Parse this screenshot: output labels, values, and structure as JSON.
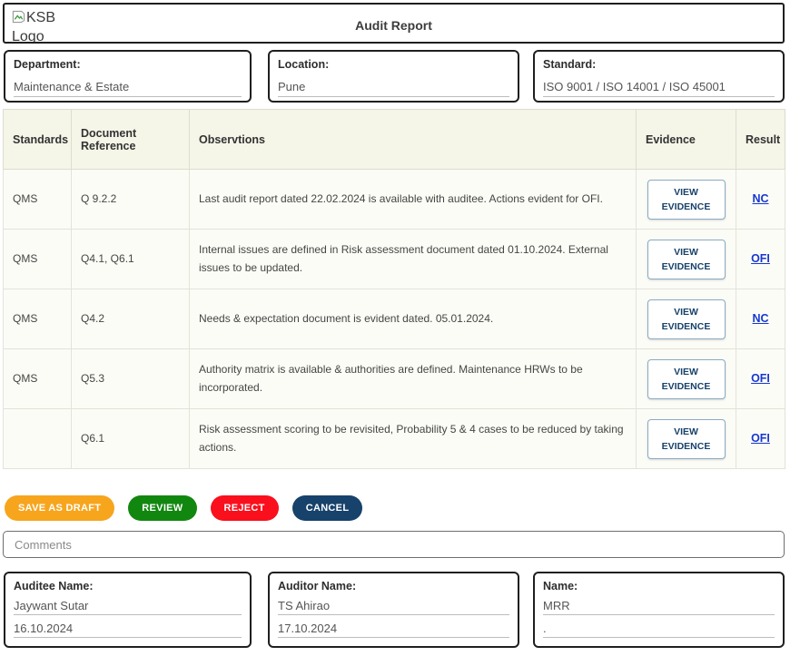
{
  "header": {
    "logo_alt": "KSB Logo",
    "title": "Audit Report"
  },
  "info_fields": [
    {
      "label": "Department:",
      "value": "Maintenance & Estate"
    },
    {
      "label": "Location:",
      "value": "Pune"
    },
    {
      "label": "Standard:",
      "value": "ISO 9001 / ISO 14001 / ISO 45001"
    }
  ],
  "table": {
    "columns": [
      "Standards",
      "Document Reference",
      "Observtions",
      "Evidence",
      "Result"
    ],
    "view_evidence_label": "VIEW EVIDENCE",
    "rows": [
      {
        "standard": "QMS",
        "doc_ref": "Q 9.2.2",
        "observation": "Last audit report dated 22.02.2024 is available with auditee. Actions evident for OFI.",
        "result": "NC"
      },
      {
        "standard": "QMS",
        "doc_ref": "Q4.1, Q6.1",
        "observation": "Internal issues are defined in Risk assessment document dated 01.10.2024. External issues to be updated.",
        "result": "OFI"
      },
      {
        "standard": "QMS",
        "doc_ref": "Q4.2",
        "observation": "Needs & expectation document is evident dated. 05.01.2024.",
        "result": "NC"
      },
      {
        "standard": "QMS",
        "doc_ref": "Q5.3",
        "observation": "Authority matrix is available & authorities are defined. Maintenance HRWs to be incorporated.",
        "result": "OFI"
      },
      {
        "standard": "",
        "doc_ref": "Q6.1",
        "observation": "Risk assessment scoring to be revisited, Probability 5 & 4 cases to be reduced by taking actions.",
        "result": "OFI"
      }
    ]
  },
  "actions": [
    {
      "name": "save-as-draft-button",
      "label": "SAVE AS DRAFT",
      "color": "#F7A51D"
    },
    {
      "name": "review-button",
      "label": "REVIEW",
      "color": "#12870F"
    },
    {
      "name": "reject-button",
      "label": "REJECT",
      "color": "#FA0F1C"
    },
    {
      "name": "cancel-button",
      "label": "CANCEL",
      "color": "#17426B"
    }
  ],
  "comments": {
    "placeholder": "Comments",
    "value": ""
  },
  "signature_fields": [
    {
      "label": "Auditee Name:",
      "name": "Jaywant Sutar",
      "date": "16.10.2024"
    },
    {
      "label": "Auditor Name:",
      "name": "TS Ahirao",
      "date": "17.10.2024"
    },
    {
      "label": "Name:",
      "name": "MRR",
      "date": "."
    }
  ],
  "colors": {
    "accent_navy": "#17426B",
    "link_blue": "#1738D2",
    "table_header_bg": "#F5F5E8",
    "table_row_bg": "#FCFCF6",
    "box_border": "#1F1F1F"
  }
}
